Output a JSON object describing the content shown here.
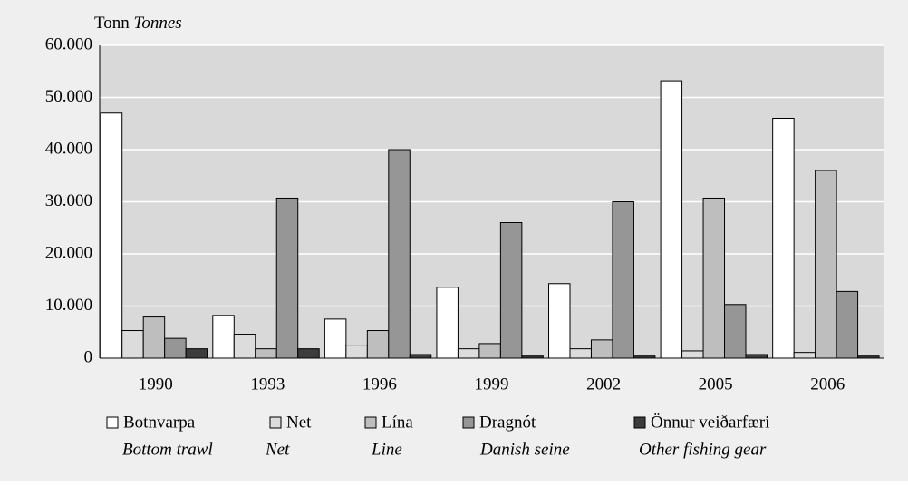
{
  "chart_data": {
    "type": "bar",
    "y_axis_label": "Tonn",
    "y_axis_label_en": "Tonnes",
    "categories": [
      "1990",
      "1993",
      "1996",
      "1999",
      "2002",
      "2005",
      "2006"
    ],
    "series": [
      {
        "name": "Botnvarpa",
        "name_en": "Bottom trawl",
        "color": "#ffffff",
        "values": [
          47000,
          8200,
          7500,
          13600,
          14300,
          53200,
          46000
        ]
      },
      {
        "name": "Net",
        "name_en": "Net",
        "color": "#dcdcdc",
        "values": [
          5300,
          4600,
          2500,
          1800,
          1800,
          1400,
          1100
        ]
      },
      {
        "name": "Lína",
        "name_en": "Line",
        "color": "#bebebe",
        "values": [
          7900,
          1800,
          5300,
          2800,
          3500,
          30700,
          36000
        ]
      },
      {
        "name": "Dragnót",
        "name_en": "Danish seine",
        "color": "#969696",
        "values": [
          3800,
          30700,
          40000,
          26000,
          30000,
          10300,
          12800
        ]
      },
      {
        "name": "Önnur veiðarfæri",
        "name_en": "Other fishing gear",
        "color": "#3c3c3c",
        "values": [
          1800,
          1800,
          700,
          400,
          400,
          700,
          400
        ]
      }
    ],
    "ylim": [
      0,
      60000
    ],
    "yticks": [
      0,
      {
        "value": 10000,
        "label": "10.000"
      },
      {
        "value": 20000,
        "label": "20.000"
      },
      {
        "value": 30000,
        "label": "30.000"
      },
      {
        "value": 40000,
        "label": "40.000"
      },
      {
        "value": 50000,
        "label": "50.000"
      },
      {
        "value": 60000,
        "label": "60.000"
      }
    ],
    "grid": true
  }
}
